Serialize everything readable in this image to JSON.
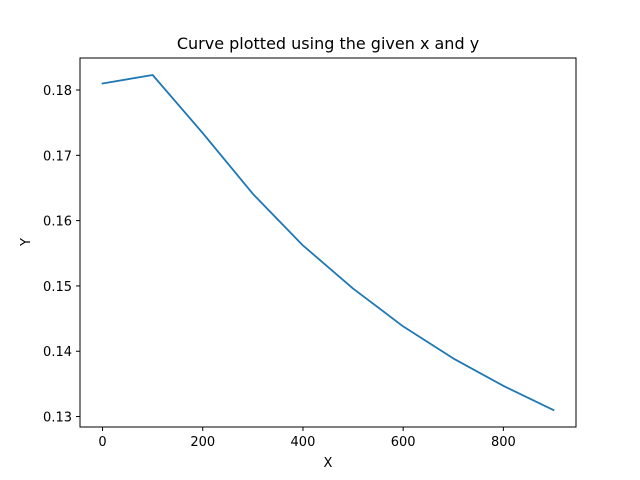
{
  "chart_data": {
    "type": "line",
    "title": "Curve plotted using the given x and y",
    "xlabel": "X",
    "ylabel": "Y",
    "xlim": [
      -45,
      945
    ],
    "ylim": [
      0.1284,
      0.1849
    ],
    "x_ticks": [
      0,
      200,
      400,
      600,
      800
    ],
    "x_tick_labels": [
      "0",
      "200",
      "400",
      "600",
      "800"
    ],
    "y_ticks": [
      0.13,
      0.14,
      0.15,
      0.16,
      0.17,
      0.18
    ],
    "y_tick_labels": [
      "0.13",
      "0.14",
      "0.15",
      "0.16",
      "0.17",
      "0.18"
    ],
    "grid": false,
    "series": [
      {
        "color": "#1f77b4",
        "x": [
          0,
          100,
          200,
          300,
          400,
          500,
          600,
          700,
          800,
          900
        ],
        "y": [
          0.181,
          0.1823,
          0.1734,
          0.1641,
          0.1562,
          0.1496,
          0.1438,
          0.1389,
          0.1347,
          0.131
        ]
      }
    ]
  }
}
